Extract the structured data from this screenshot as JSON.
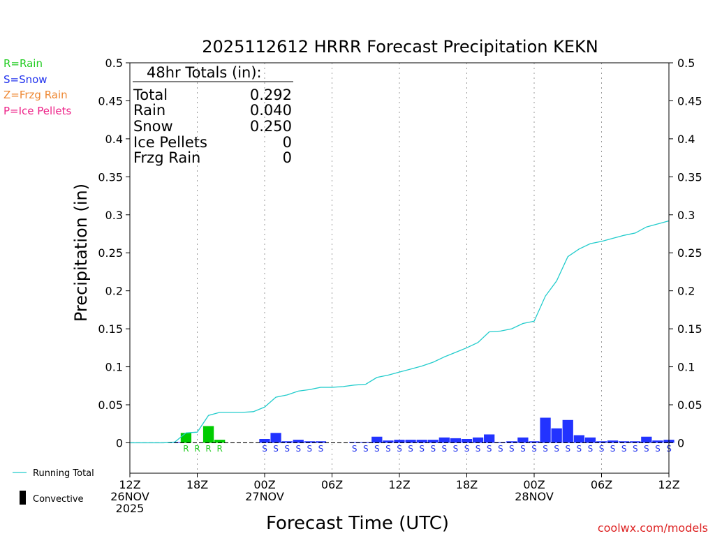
{
  "title": "2025112612 HRRR Forecast Precipitation KEKN",
  "ylabel": "Precipitation (in)",
  "xlabel": "Forecast Time (UTC)",
  "credit": "coolwx.com/models",
  "credit_color": "#dd2222",
  "ptype_legend": [
    {
      "label": "R=Rain",
      "color": "#22cc22"
    },
    {
      "label": "S=Snow",
      "color": "#2233ee"
    },
    {
      "label": "Z=Frzg Rain",
      "color": "#ee8833"
    },
    {
      "label": "P=Ice Pellets",
      "color": "#ee2288"
    }
  ],
  "totals": {
    "header": "48hr Totals (in):",
    "rows": [
      {
        "label": "Total",
        "value": "0.292"
      },
      {
        "label": "Rain",
        "value": "0.040"
      },
      {
        "label": "Snow",
        "value": "0.250"
      },
      {
        "label": "Ice Pellets",
        "value": "0"
      },
      {
        "label": "Frzg Rain",
        "value": "0"
      }
    ]
  },
  "bottom_legend": {
    "running_total": "Running Total",
    "convective": "Convective"
  },
  "chart_data": {
    "type": "bar",
    "title": "2025112612 HRRR Forecast Precipitation KEKN",
    "xlabel": "Forecast Time (UTC)",
    "ylabel": "Precipitation (in)",
    "ylim": [
      -0.04,
      0.5
    ],
    "xlim": [
      0,
      48
    ],
    "y_ticks": [
      "0",
      "0.05",
      "0.1",
      "0.15",
      "0.2",
      "0.25",
      "0.3",
      "0.35",
      "0.4",
      "0.45",
      "0.5"
    ],
    "x_ticks": [
      {
        "hour": 0,
        "lines": [
          "12Z",
          "26NOV",
          "2025"
        ]
      },
      {
        "hour": 6,
        "lines": [
          "18Z"
        ]
      },
      {
        "hour": 12,
        "lines": [
          "00Z",
          "27NOV"
        ]
      },
      {
        "hour": 18,
        "lines": [
          "06Z"
        ]
      },
      {
        "hour": 24,
        "lines": [
          "12Z"
        ]
      },
      {
        "hour": 30,
        "lines": [
          "18Z"
        ]
      },
      {
        "hour": 36,
        "lines": [
          "00Z",
          "28NOV"
        ]
      },
      {
        "hour": 42,
        "lines": [
          "06Z"
        ]
      },
      {
        "hour": 48,
        "lines": [
          "12Z"
        ]
      }
    ],
    "grid": "vertical dotted",
    "colors": {
      "rain": "#00cc00",
      "snow": "#2233ff",
      "running_total": "#22cccc"
    },
    "hourly_precip": [
      0,
      0,
      0,
      0,
      0.001,
      0.013,
      0,
      0.022,
      0.004,
      0,
      0,
      0,
      0.005,
      0.013,
      0.002,
      0.004,
      0.002,
      0.002,
      0,
      0,
      0.001,
      0.001,
      0.008,
      0.003,
      0.004,
      0.004,
      0.004,
      0.004,
      0.007,
      0.006,
      0.005,
      0.007,
      0.011,
      0.001,
      0.002,
      0.007,
      0.002,
      0.033,
      0.019,
      0.03,
      0.01,
      0.007,
      0.002,
      0.003,
      0.002,
      0.002,
      0.008,
      0.003,
      0.004
    ],
    "precip_type": [
      "",
      "",
      "",
      "",
      "",
      "R",
      "R",
      "R",
      "R",
      "",
      "",
      "",
      "S",
      "S",
      "S",
      "S",
      "S",
      "S",
      "",
      "",
      "S",
      "S",
      "S",
      "S",
      "S",
      "S",
      "S",
      "S",
      "S",
      "S",
      "S",
      "S",
      "S",
      "S",
      "S",
      "S",
      "S",
      "S",
      "S",
      "S",
      "S",
      "S",
      "S",
      "S",
      "S",
      "S",
      "S",
      "S",
      "S"
    ],
    "running_total": [
      0,
      0,
      0,
      0,
      0.001,
      0.013,
      0.014,
      0.036,
      0.04,
      0.04,
      0.04,
      0.041,
      0.047,
      0.06,
      0.063,
      0.068,
      0.07,
      0.073,
      0.073,
      0.074,
      0.076,
      0.077,
      0.086,
      0.089,
      0.093,
      0.097,
      0.101,
      0.106,
      0.113,
      0.119,
      0.125,
      0.132,
      0.146,
      0.147,
      0.15,
      0.157,
      0.16,
      0.193,
      0.213,
      0.245,
      0.255,
      0.262,
      0.265,
      0.269,
      0.273,
      0.276,
      0.284,
      0.288,
      0.292
    ],
    "legend": [
      "Running Total",
      "Convective"
    ]
  }
}
